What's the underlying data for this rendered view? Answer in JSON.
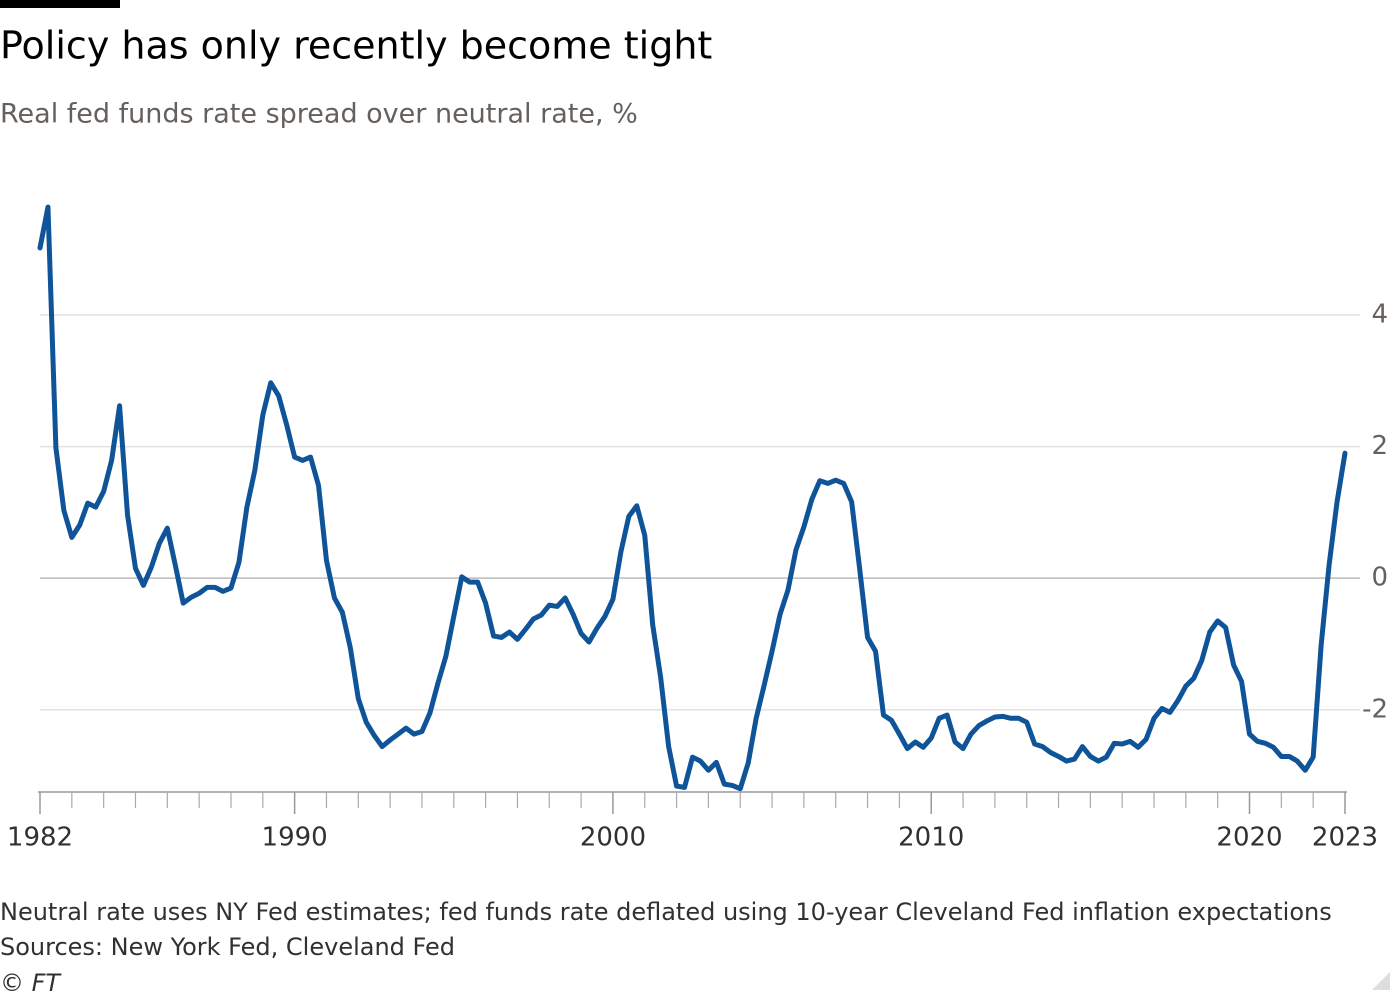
{
  "chart_data": {
    "type": "line",
    "title": "Policy has only recently become tight",
    "subtitle": "Real fed funds rate spread over neutral rate, %",
    "notes": [
      "Neutral rate uses NY Fed estimates; fed funds rate deflated using 10-year Cleveland Fed inflation expectations",
      "Sources: New York Fed, Cleveland Fed"
    ],
    "credit": "© FT",
    "x": [
      1982,
      1982.25,
      1982.5,
      1982.75,
      1983,
      1983.25,
      1983.5,
      1983.75,
      1984,
      1984.25,
      1984.5,
      1984.75,
      1985,
      1985.25,
      1985.5,
      1985.75,
      1986,
      1986.25,
      1986.5,
      1986.75,
      1987,
      1987.25,
      1987.5,
      1987.75,
      1988,
      1988.25,
      1988.5,
      1988.75,
      1989,
      1989.25,
      1989.5,
      1989.75,
      1990,
      1990.25,
      1990.5,
      1990.75,
      1991,
      1991.25,
      1991.5,
      1991.75,
      1992,
      1992.25,
      1992.5,
      1992.75,
      1993,
      1993.25,
      1993.5,
      1993.75,
      1994,
      1994.25,
      1994.5,
      1994.75,
      1995,
      1995.25,
      1995.5,
      1995.75,
      1996,
      1996.25,
      1996.5,
      1996.75,
      1997,
      1997.25,
      1997.5,
      1997.75,
      1998,
      1998.25,
      1998.5,
      1998.75,
      1999,
      1999.25,
      1999.5,
      1999.75,
      2000,
      2000.25,
      2000.5,
      2000.75,
      2001,
      2001.25,
      2001.5,
      2001.75,
      2002,
      2002.25,
      2002.5,
      2002.75,
      2003,
      2003.25,
      2003.5,
      2003.75,
      2004,
      2004.25,
      2004.5,
      2004.75,
      2005,
      2005.25,
      2005.5,
      2005.75,
      2006,
      2006.25,
      2006.5,
      2006.75,
      2007,
      2007.25,
      2007.5,
      2007.75,
      2008,
      2008.25,
      2008.5,
      2008.75,
      2009,
      2009.25,
      2009.5,
      2009.75,
      2010,
      2010.25,
      2010.5,
      2010.75,
      2011,
      2011.25,
      2011.5,
      2011.75,
      2012,
      2012.25,
      2012.5,
      2012.75,
      2013,
      2013.25,
      2013.5,
      2013.75,
      2014,
      2014.25,
      2014.5,
      2014.75,
      2015,
      2015.25,
      2015.5,
      2015.75,
      2016,
      2016.25,
      2016.5,
      2016.75,
      2017,
      2017.25,
      2017.5,
      2017.75,
      2018,
      2018.25,
      2018.5,
      2018.75,
      2019,
      2019.25,
      2019.5,
      2019.75,
      2020,
      2020.25,
      2020.5,
      2020.75,
      2021,
      2021.25,
      2021.5,
      2021.75,
      2022,
      2022.25,
      2022.5,
      2022.75,
      2023
    ],
    "values": [
      5.02,
      5.64,
      1.98,
      1.03,
      0.62,
      0.81,
      1.14,
      1.08,
      1.32,
      1.79,
      2.62,
      0.96,
      0.15,
      -0.11,
      0.17,
      0.53,
      0.76,
      0.2,
      -0.38,
      -0.29,
      -0.23,
      -0.14,
      -0.14,
      -0.2,
      -0.15,
      0.24,
      1.08,
      1.64,
      2.48,
      2.97,
      2.77,
      2.33,
      1.84,
      1.79,
      1.84,
      1.41,
      0.27,
      -0.3,
      -0.52,
      -1.06,
      -1.83,
      -2.19,
      -2.39,
      -2.56,
      -2.46,
      -2.37,
      -2.28,
      -2.37,
      -2.33,
      -2.05,
      -1.6,
      -1.19,
      -0.58,
      0.02,
      -0.06,
      -0.06,
      -0.38,
      -0.88,
      -0.9,
      -0.82,
      -0.93,
      -0.78,
      -0.62,
      -0.56,
      -0.41,
      -0.43,
      -0.3,
      -0.55,
      -0.84,
      -0.97,
      -0.76,
      -0.58,
      -0.32,
      0.4,
      0.94,
      1.1,
      0.65,
      -0.71,
      -1.51,
      -2.56,
      -3.16,
      -3.18,
      -2.72,
      -2.78,
      -2.92,
      -2.8,
      -3.13,
      -3.15,
      -3.2,
      -2.81,
      -2.13,
      -1.63,
      -1.11,
      -0.55,
      -0.18,
      0.43,
      0.78,
      1.2,
      1.48,
      1.44,
      1.49,
      1.44,
      1.16,
      0.15,
      -0.9,
      -1.11,
      -2.08,
      -2.16,
      -2.37,
      -2.59,
      -2.49,
      -2.57,
      -2.43,
      -2.13,
      -2.08,
      -2.49,
      -2.59,
      -2.37,
      -2.24,
      -2.17,
      -2.11,
      -2.1,
      -2.13,
      -2.13,
      -2.19,
      -2.52,
      -2.56,
      -2.65,
      -2.71,
      -2.78,
      -2.75,
      -2.56,
      -2.71,
      -2.78,
      -2.72,
      -2.51,
      -2.52,
      -2.48,
      -2.57,
      -2.45,
      -2.13,
      -1.98,
      -2.04,
      -1.86,
      -1.64,
      -1.52,
      -1.25,
      -0.82,
      -0.65,
      -0.75,
      -1.32,
      -1.57,
      -2.37,
      -2.48,
      -2.51,
      -2.57,
      -2.71,
      -2.71,
      -2.78,
      -2.92,
      -2.72,
      -1.02,
      0.2,
      1.16,
      1.9
    ],
    "color": "#0f5499",
    "xlim": [
      1982,
      2023
    ],
    "xticks": [
      1982,
      1990,
      2000,
      2010,
      2020,
      2023
    ],
    "xminorticks": [
      1983,
      1984,
      1985,
      1986,
      1987,
      1988,
      1989,
      1991,
      1992,
      1993,
      1994,
      1995,
      1996,
      1997,
      1998,
      1999,
      2001,
      2002,
      2003,
      2004,
      2005,
      2006,
      2007,
      2008,
      2009,
      2011,
      2012,
      2013,
      2014,
      2015,
      2016,
      2017,
      2018,
      2019,
      2021,
      2022
    ],
    "ylim": [
      -3.25,
      5.9
    ],
    "yticks": [
      -2,
      0,
      2,
      4
    ],
    "grid": true
  }
}
